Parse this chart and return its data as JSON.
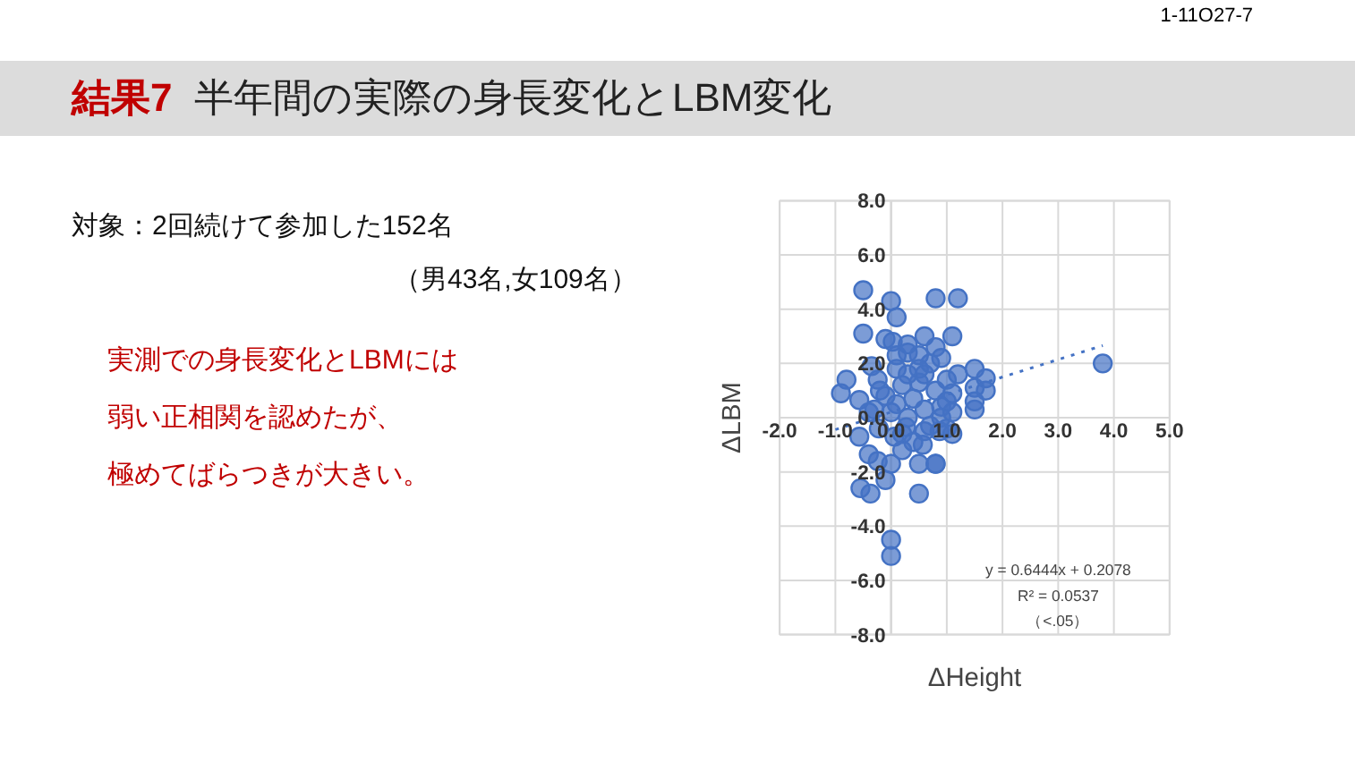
{
  "chart_data": {
    "type": "scatter",
    "title": "結果7",
    "subtitle": "半年間の実際の身長変化とLBM変化",
    "xlabel": "ΔHeight",
    "ylabel": "ΔLBM",
    "xlim": [
      -2,
      5
    ],
    "ylim": [
      -8,
      8
    ],
    "xticks": [
      {
        "value": -2,
        "label": "-2.0"
      },
      {
        "value": -1,
        "label": "-1.0"
      },
      {
        "value": 0,
        "label": "0.0"
      },
      {
        "value": 1,
        "label": "1.0"
      },
      {
        "value": 2,
        "label": "2.0"
      },
      {
        "value": 3,
        "label": "3.0"
      },
      {
        "value": 4,
        "label": "4.0"
      },
      {
        "value": 5,
        "label": "5.0"
      }
    ],
    "yticks": [
      {
        "value": -8,
        "label": "-8.0"
      },
      {
        "value": -6,
        "label": "-6.0"
      },
      {
        "value": -4,
        "label": "-4.0"
      },
      {
        "value": -2,
        "label": "-2.0"
      },
      {
        "value": 0,
        "label": "0.0"
      },
      {
        "value": 2,
        "label": "2.0"
      },
      {
        "value": 4,
        "label": "4.0"
      },
      {
        "value": 6,
        "label": "6.0"
      },
      {
        "value": 8,
        "label": "8.0"
      }
    ],
    "grid": true,
    "series": [
      {
        "marker": "circle",
        "color": "#4472c4",
        "x": [
          -0.5,
          0.0,
          0.1,
          -0.5,
          0.8,
          1.2,
          -0.1,
          0.03,
          0.3,
          0.3,
          0.6,
          0.8,
          0.9,
          -0.8,
          -0.9,
          -0.57,
          -0.35,
          -0.24,
          0.1,
          0.5,
          1.0,
          1.1,
          1.5,
          1.7,
          1.7,
          1.5,
          1.5,
          1.5,
          1.2,
          1.1,
          1.0,
          3.8,
          0.8,
          1.0,
          1.1,
          0.9,
          -0.57,
          -0.4,
          -0.24,
          0.0,
          -0.55,
          -0.37,
          -0.1,
          0.5,
          0.8,
          0.5,
          0.0,
          0.0,
          -0.22,
          0.06,
          0.27,
          0.57,
          0.87,
          0.2,
          -0.3,
          -0.1,
          0.1,
          0.2,
          0.3,
          0.4,
          0.5,
          0.6,
          0.7,
          0.8,
          0.9,
          0.2,
          0.4,
          0.6,
          -0.2,
          0.0,
          0.3,
          0.6,
          0.7,
          -0.4,
          1.1,
          0.5,
          0.1
        ],
        "values": [
          4.7,
          4.3,
          3.7,
          3.1,
          4.4,
          4.4,
          2.9,
          2.8,
          2.7,
          2.4,
          3.0,
          2.6,
          2.2,
          1.4,
          0.9,
          0.65,
          1.9,
          1.4,
          1.8,
          1.8,
          1.4,
          3.0,
          1.8,
          1.45,
          1.0,
          1.1,
          0.6,
          0.3,
          1.6,
          0.9,
          0.6,
          2.0,
          -1.7,
          -0.4,
          -0.6,
          0.0,
          -0.7,
          -1.35,
          -1.6,
          -1.7,
          -2.6,
          -2.8,
          -2.3,
          -2.8,
          -1.7,
          -1.7,
          -4.5,
          -5.1,
          -0.4,
          -0.7,
          -0.35,
          -1.0,
          -0.5,
          -1.2,
          0.3,
          0.8,
          0.5,
          1.2,
          0.0,
          0.7,
          1.3,
          0.3,
          -0.3,
          1.0,
          0.4,
          -0.6,
          -0.9,
          -0.5,
          1.0,
          0.2,
          1.6,
          1.6,
          2.0,
          0.2,
          0.2,
          2.3,
          2.3
        ]
      },
      {
        "type": "line",
        "color": "#4472c4",
        "line_style": "dotted",
        "x": [
          -1.0,
          3.8
        ],
        "values": [
          -0.44,
          2.66
        ]
      }
    ],
    "annotations": [
      "1-11O27-7",
      "対象：2回続けて参加した152名",
      "（男43名,女109名）",
      "実測での身長変化とLBMには",
      "弱い正相関を認めたが、",
      "極めてばらつきが大きい。",
      "y = 0.6444x + 0.2078",
      "R² = 0.0537",
      "（<.05）"
    ]
  }
}
